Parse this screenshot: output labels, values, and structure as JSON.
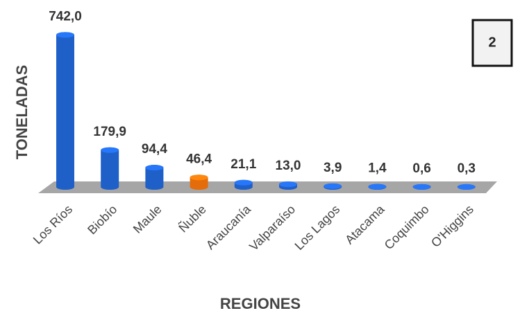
{
  "chart_data": {
    "type": "bar",
    "categories": [
      "Los Ríos",
      "Biobío",
      "Maule",
      "Ñuble",
      "Araucanía",
      "Valparaíso",
      "Los Lagos",
      "Atacama",
      "Coquimbo",
      "O'Higgins"
    ],
    "values": [
      742.0,
      179.9,
      94.4,
      46.4,
      21.1,
      13.0,
      3.9,
      1.4,
      0.6,
      0.3
    ],
    "value_labels": [
      "742,0",
      "179,9",
      "94,4",
      "46,4",
      "21,1",
      "13,0",
      "3,9",
      "1,4",
      "0,6",
      "0,3"
    ],
    "colors": [
      "#1f5fc8",
      "#1f5fc8",
      "#1f5fc8",
      "#e46c0a",
      "#1f5fc8",
      "#1f5fc8",
      "#1f5fc8",
      "#1f5fc8",
      "#1f5fc8",
      "#1f5fc8"
    ],
    "y_label": "TONELADAS",
    "x_label": "REGIONES",
    "annotation": "2"
  }
}
